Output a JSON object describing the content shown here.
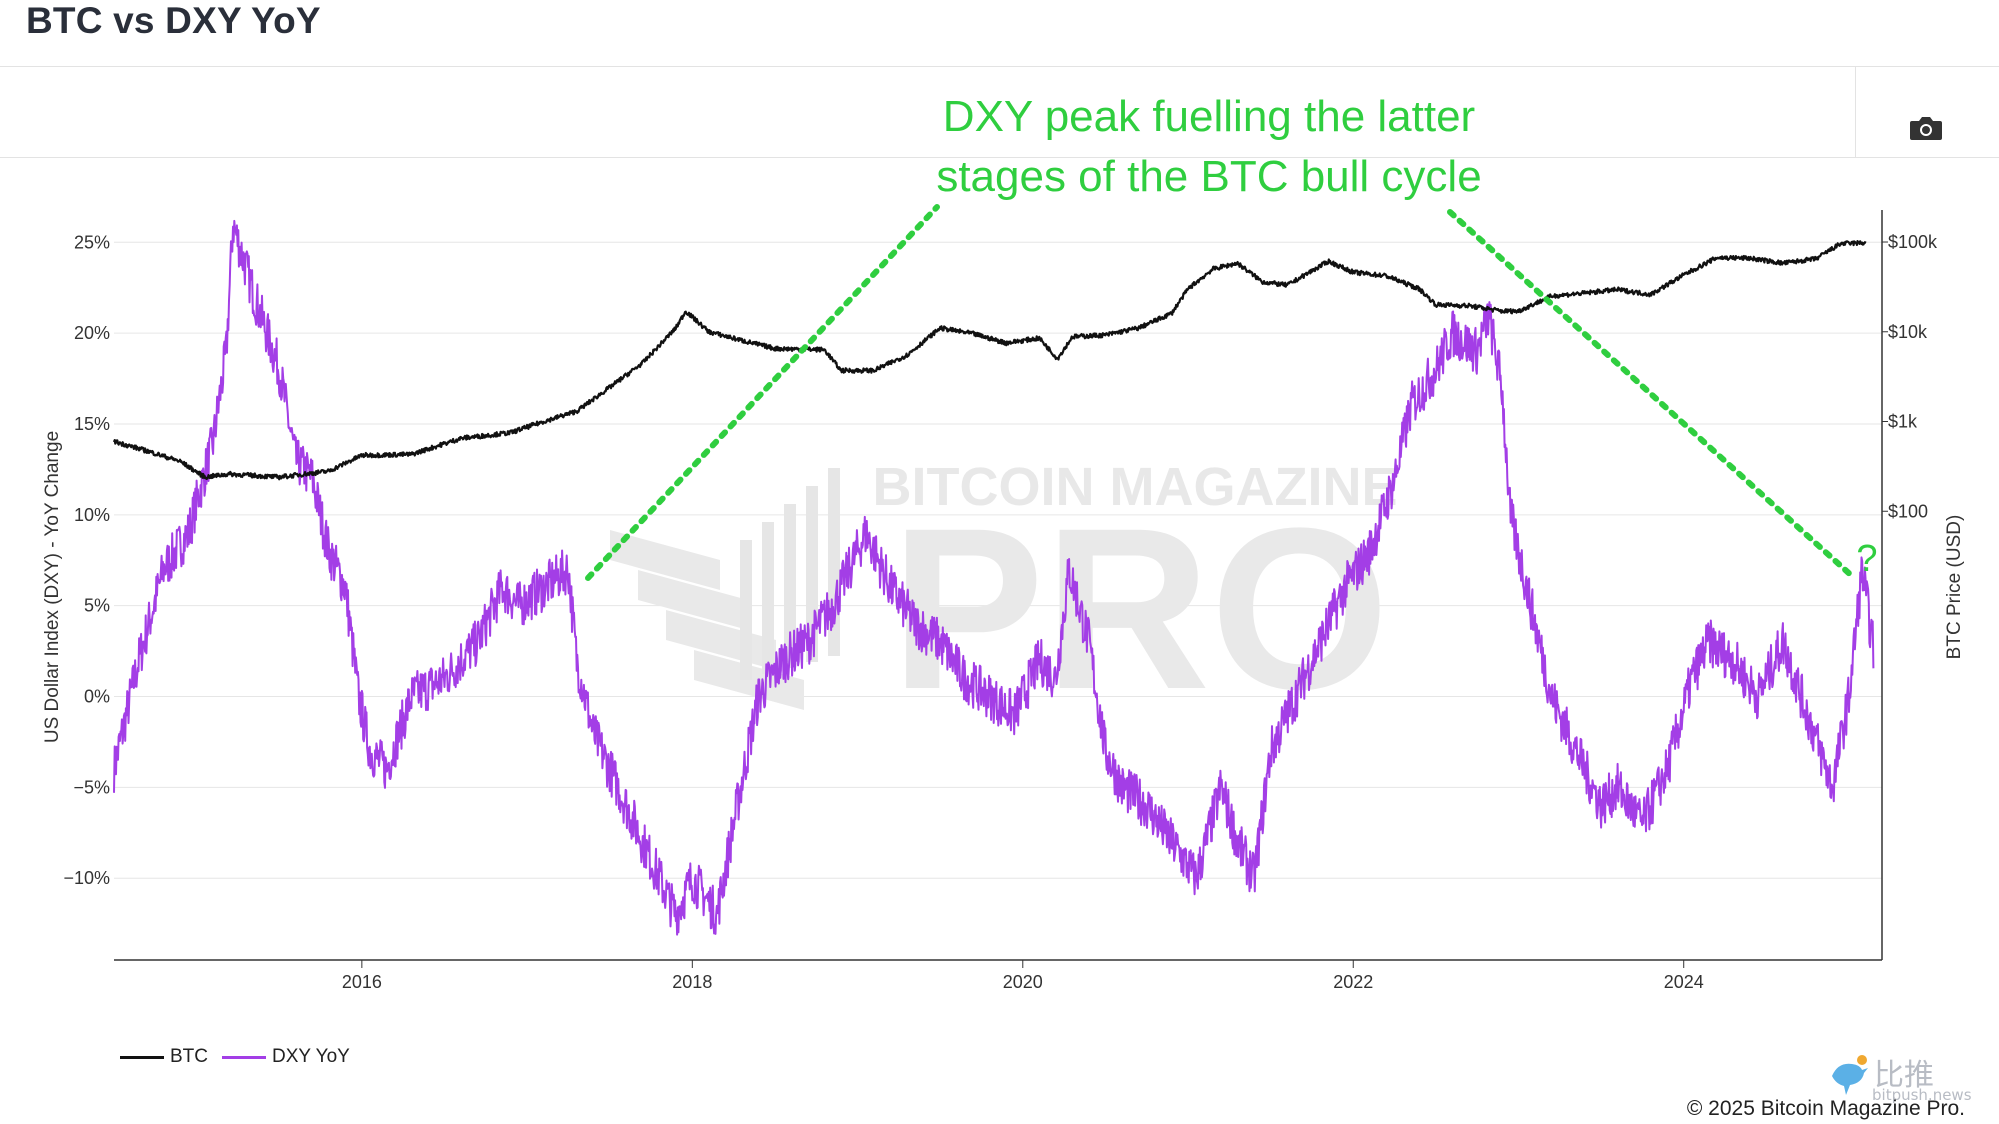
{
  "page": {
    "title": "BTC vs DXY YoY",
    "annotation_line1": "DXY peak fuelling the latter",
    "annotation_line2": "stages of the BTC bull cycle",
    "annotation_mark": "?",
    "copyright": "© 2025 Bitcoin Magazine Pro.",
    "watermark_top": "BITCOIN MAGAZINE",
    "watermark_big": "PRO",
    "corner_watermark_cn": "比推",
    "corner_watermark_en": "bitpush.news",
    "icons": [
      "camera-icon",
      "bird-logo-icon"
    ]
  },
  "colors": {
    "btc": "#111111",
    "dxy": "#a33ee6",
    "annotation": "#2fce3f",
    "grid": "#e6e6e6"
  },
  "chart_data": {
    "type": "line",
    "title": "BTC vs DXY YoY",
    "x_ticks": [
      "2016",
      "2018",
      "2020",
      "2022",
      "2024"
    ],
    "x_range": [
      2014.5,
      2025.2
    ],
    "y_left": {
      "label": "US Dollar Index (DXY) - YoY Change",
      "unit": "%",
      "range": [
        -14.5,
        26.5
      ],
      "ticks": [
        25,
        20,
        15,
        10,
        5,
        0,
        -5,
        -10
      ],
      "tick_labels": [
        "25%",
        "20%",
        "15%",
        "10%",
        "5%",
        "0%",
        "−5%",
        "−10%"
      ]
    },
    "y_right": {
      "label": "BTC Price (USD)",
      "scale": "log",
      "range": [
        0.001,
        200000
      ],
      "ticks": [
        100000,
        10000,
        1000,
        100
      ],
      "tick_labels": [
        "$100k",
        "$10k",
        "$1k",
        "$100"
      ]
    },
    "grid": true,
    "legend_position": "bottom-left",
    "series": [
      {
        "name": "BTC",
        "axis": "right",
        "x": [
          2014.5,
          2014.7,
          2014.9,
          2015.05,
          2015.2,
          2015.5,
          2015.8,
          2016.0,
          2016.3,
          2016.6,
          2016.9,
          2017.1,
          2017.3,
          2017.5,
          2017.7,
          2017.9,
          2017.96,
          2018.1,
          2018.3,
          2018.5,
          2018.8,
          2018.9,
          2019.1,
          2019.3,
          2019.5,
          2019.7,
          2019.9,
          2020.1,
          2020.21,
          2020.3,
          2020.5,
          2020.7,
          2020.9,
          2021.0,
          2021.15,
          2021.3,
          2021.45,
          2021.6,
          2021.85,
          2022.0,
          2022.2,
          2022.4,
          2022.5,
          2022.7,
          2022.9,
          2023.0,
          2023.2,
          2023.4,
          2023.6,
          2023.8,
          2024.0,
          2024.2,
          2024.4,
          2024.6,
          2024.8,
          2024.95,
          2025.1
        ],
        "y": [
          600,
          470,
          360,
          240,
          260,
          240,
          280,
          420,
          430,
          650,
          750,
          1000,
          1300,
          2400,
          4500,
          11000,
          17000,
          10000,
          8000,
          6500,
          6300,
          3700,
          3700,
          5500,
          11000,
          9500,
          7500,
          8500,
          5000,
          8800,
          9200,
          11000,
          16000,
          30000,
          50000,
          58000,
          36000,
          33000,
          61000,
          46000,
          42000,
          30000,
          20000,
          19500,
          17000,
          17000,
          25000,
          27000,
          29500,
          26000,
          43000,
          67000,
          66000,
          58000,
          65000,
          96000,
          98000
        ]
      },
      {
        "name": "DXY YoY",
        "axis": "left",
        "x": [
          2014.5,
          2014.65,
          2014.8,
          2014.95,
          2015.1,
          2015.18,
          2015.22,
          2015.35,
          2015.5,
          2015.6,
          2015.7,
          2015.8,
          2015.9,
          2015.98,
          2016.05,
          2016.15,
          2016.3,
          2016.5,
          2016.7,
          2016.85,
          2016.95,
          2017.1,
          2017.25,
          2017.3,
          2017.4,
          2017.55,
          2017.75,
          2017.9,
          2018.0,
          2018.15,
          2018.25,
          2018.4,
          2018.55,
          2018.7,
          2018.85,
          2019.05,
          2019.2,
          2019.35,
          2019.5,
          2019.65,
          2019.8,
          2019.95,
          2020.1,
          2020.2,
          2020.28,
          2020.4,
          2020.5,
          2020.6,
          2020.75,
          2020.9,
          2021.05,
          2021.2,
          2021.3,
          2021.4,
          2021.5,
          2021.65,
          2021.8,
          2021.95,
          2022.1,
          2022.25,
          2022.35,
          2022.5,
          2022.6,
          2022.75,
          2022.82,
          2022.9,
          2022.95,
          2023.05,
          2023.2,
          2023.35,
          2023.5,
          2023.6,
          2023.75,
          2023.9,
          2024.05,
          2024.15,
          2024.3,
          2024.45,
          2024.6,
          2024.75,
          2024.9,
          2025.0,
          2025.08,
          2025.15
        ],
        "y": [
          -4,
          2,
          7,
          9,
          14,
          19,
          26,
          22,
          18,
          13,
          12,
          8,
          6,
          0,
          -3,
          -4,
          0,
          1,
          3,
          6,
          5,
          6,
          7,
          2,
          -2,
          -5,
          -9,
          -12,
          -10,
          -12,
          -7,
          0,
          2,
          3,
          5,
          9,
          6,
          4,
          3,
          1,
          0,
          -1,
          2,
          1,
          7,
          3,
          -3,
          -5,
          -6,
          -8,
          -10,
          -5,
          -8,
          -10,
          -3,
          0,
          3,
          6,
          8,
          12,
          16,
          18,
          20,
          19,
          21,
          17,
          10,
          6,
          0,
          -3,
          -6,
          -5,
          -7,
          -4,
          1,
          3,
          2,
          0,
          3,
          -1,
          -5,
          0,
          7,
          2.5
        ]
      }
    ]
  }
}
